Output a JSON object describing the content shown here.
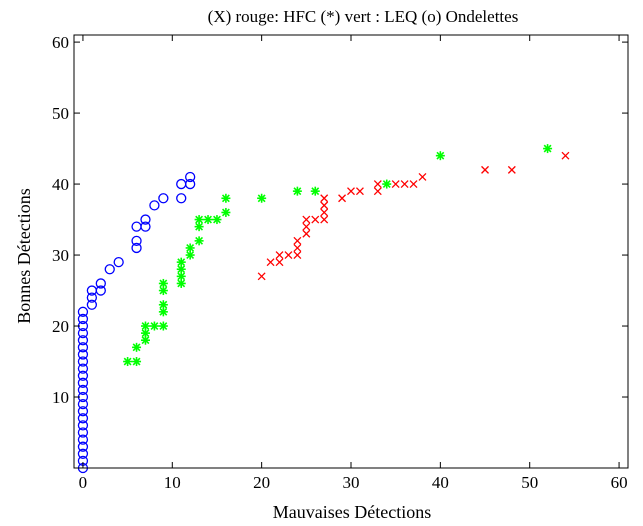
{
  "chart_data": {
    "type": "scatter",
    "title": "(X) rouge: HFC  (*) vert : LEQ   (o) Ondelettes",
    "xlabel": "Mauvaises Détections",
    "ylabel": "Bonnes Détections",
    "xlim": [
      -1,
      61
    ],
    "ylim": [
      0,
      61
    ],
    "xticks": [
      0,
      10,
      20,
      30,
      40,
      50,
      60
    ],
    "yticks": [
      10,
      20,
      30,
      40,
      50,
      60
    ],
    "xtick_labels": [
      "0",
      "10",
      "20",
      "30",
      "40",
      "50",
      "60"
    ],
    "ytick_labels": [
      "10",
      "20",
      "30",
      "40",
      "50",
      "60"
    ],
    "grid": false,
    "series": [
      {
        "marker": "x",
        "color": "#ff0000",
        "points": [
          [
            20,
            27
          ],
          [
            21,
            29
          ],
          [
            22,
            29
          ],
          [
            22,
            30
          ],
          [
            23,
            30
          ],
          [
            24,
            31
          ],
          [
            24,
            32
          ],
          [
            24,
            30
          ],
          [
            25,
            33
          ],
          [
            25,
            34
          ],
          [
            25,
            35
          ],
          [
            26,
            35
          ],
          [
            27,
            35
          ],
          [
            27,
            36
          ],
          [
            27,
            37
          ],
          [
            27,
            38
          ],
          [
            29,
            38
          ],
          [
            30,
            39
          ],
          [
            31,
            39
          ],
          [
            33,
            39
          ],
          [
            33,
            40
          ],
          [
            35,
            40
          ],
          [
            36,
            40
          ],
          [
            37,
            40
          ],
          [
            38,
            41
          ],
          [
            45,
            42
          ],
          [
            48,
            42
          ],
          [
            54,
            44
          ]
        ]
      },
      {
        "marker": "*",
        "color": "#00ff00",
        "points": [
          [
            5,
            15
          ],
          [
            6,
            15
          ],
          [
            6,
            17
          ],
          [
            7,
            18
          ],
          [
            7,
            19
          ],
          [
            7,
            20
          ],
          [
            8,
            20
          ],
          [
            9,
            20
          ],
          [
            9,
            22
          ],
          [
            9,
            23
          ],
          [
            9,
            25
          ],
          [
            9,
            26
          ],
          [
            11,
            26
          ],
          [
            11,
            27
          ],
          [
            11,
            28
          ],
          [
            11,
            29
          ],
          [
            12,
            30
          ],
          [
            12,
            31
          ],
          [
            13,
            32
          ],
          [
            13,
            34
          ],
          [
            13,
            35
          ],
          [
            14,
            35
          ],
          [
            15,
            35
          ],
          [
            16,
            36
          ],
          [
            16,
            38
          ],
          [
            20,
            38
          ],
          [
            24,
            39
          ],
          [
            26,
            39
          ],
          [
            34,
            40
          ],
          [
            40,
            44
          ],
          [
            52,
            45
          ]
        ]
      },
      {
        "marker": "o",
        "color": "#0000ff",
        "points": [
          [
            0,
            0
          ],
          [
            0,
            1
          ],
          [
            0,
            2
          ],
          [
            0,
            3
          ],
          [
            0,
            4
          ],
          [
            0,
            5
          ],
          [
            0,
            6
          ],
          [
            0,
            7
          ],
          [
            0,
            8
          ],
          [
            0,
            9
          ],
          [
            0,
            10
          ],
          [
            0,
            11
          ],
          [
            0,
            12
          ],
          [
            0,
            13
          ],
          [
            0,
            14
          ],
          [
            0,
            15
          ],
          [
            0,
            16
          ],
          [
            0,
            17
          ],
          [
            0,
            18
          ],
          [
            0,
            19
          ],
          [
            0,
            20
          ],
          [
            0,
            21
          ],
          [
            0,
            22
          ],
          [
            1,
            23
          ],
          [
            1,
            24
          ],
          [
            1,
            25
          ],
          [
            2,
            25
          ],
          [
            2,
            26
          ],
          [
            3,
            28
          ],
          [
            4,
            29
          ],
          [
            6,
            31
          ],
          [
            6,
            32
          ],
          [
            6,
            34
          ],
          [
            7,
            34
          ],
          [
            7,
            35
          ],
          [
            8,
            37
          ],
          [
            9,
            38
          ],
          [
            11,
            38
          ],
          [
            11,
            40
          ],
          [
            12,
            40
          ],
          [
            12,
            41
          ]
        ]
      }
    ]
  }
}
